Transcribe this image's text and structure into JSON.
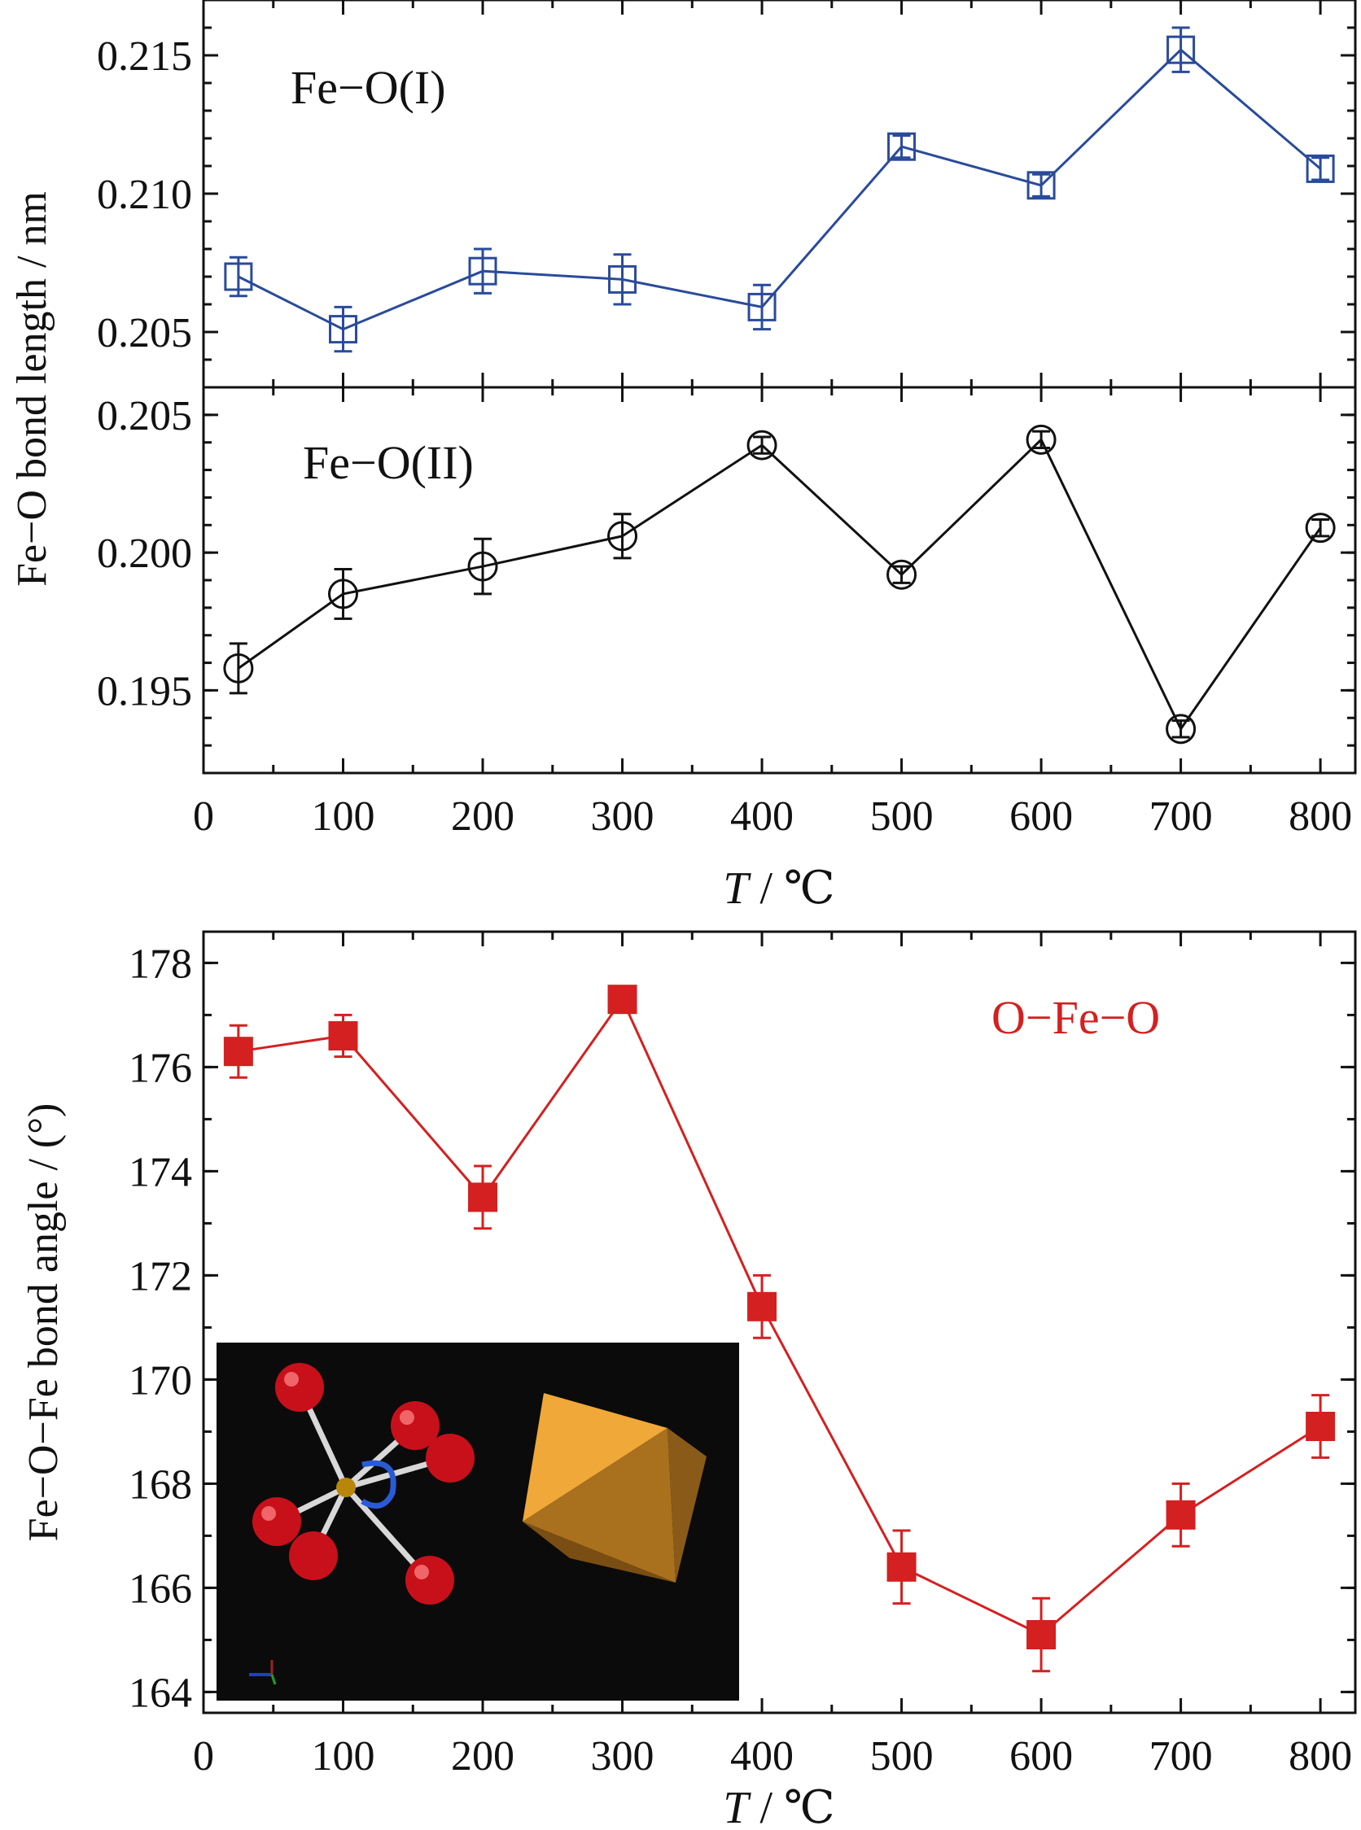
{
  "colors": {
    "series_blue": "#2a4b9b",
    "series_black": "#111111",
    "series_red": "#d42020",
    "axis": "#111111",
    "inset_bg": "#0b0b0b",
    "oxygen": "#c8101a",
    "iron": "#b8860b",
    "bond": "#d8d8d8",
    "octahedron": "#e8a13c"
  },
  "chart_data": [
    {
      "type": "line",
      "panel": "top-upper",
      "title": "",
      "annotation": "Fe−O(I)",
      "ylabel": "Fe−O bond length / nm",
      "ylim": [
        0.203,
        0.217
      ],
      "xlim": [
        0,
        825
      ],
      "x": [
        25,
        100,
        200,
        300,
        400,
        500,
        600,
        700,
        800
      ],
      "yticks": [
        0.205,
        0.21,
        0.215
      ],
      "ytick_labels": [
        "0.205",
        "0.210",
        "0.215"
      ],
      "marker": "open-square",
      "series": [
        {
          "values": [
            0.207,
            0.2051,
            0.2072,
            0.2069,
            0.2059,
            0.2117,
            0.2103,
            0.2152,
            0.2109
          ],
          "errors": [
            0.0007,
            0.0008,
            0.0008,
            0.0009,
            0.0008,
            0.0004,
            0.0004,
            0.0008,
            0.0004
          ]
        }
      ]
    },
    {
      "type": "line",
      "panel": "top-lower",
      "title": "",
      "annotation": "Fe−O(II)",
      "ylabel": "",
      "ylim": [
        0.192,
        0.206
      ],
      "xlim": [
        0,
        825
      ],
      "x": [
        25,
        100,
        200,
        300,
        400,
        500,
        600,
        700,
        800
      ],
      "xticks": [
        0,
        100,
        200,
        300,
        400,
        500,
        600,
        700,
        800
      ],
      "xtick_labels": [
        "0",
        "100",
        "200",
        "300",
        "400",
        "500",
        "600",
        "700",
        "800"
      ],
      "yticks": [
        0.195,
        0.2,
        0.205
      ],
      "ytick_labels": [
        "0.195",
        "0.200",
        "0.205"
      ],
      "xlabel_italic": "T",
      "xlabel_rest": " / ℃",
      "marker": "open-circle",
      "series": [
        {
          "values": [
            0.1958,
            0.1985,
            0.1995,
            0.2006,
            0.2039,
            0.1992,
            0.2041,
            0.1936,
            0.2009
          ],
          "errors": [
            0.0009,
            0.0009,
            0.001,
            0.0008,
            0.0003,
            0.0003,
            0.0003,
            0.0003,
            0.0003
          ]
        }
      ]
    },
    {
      "type": "line",
      "panel": "bottom",
      "title": "",
      "annotation": "O−Fe−O",
      "ylabel": "Fe−O−Fe bond angle / (°)",
      "ylim": [
        163.6,
        178.6
      ],
      "xlim": [
        0,
        825
      ],
      "x": [
        25,
        100,
        200,
        300,
        400,
        500,
        600,
        700,
        800
      ],
      "xticks": [
        0,
        100,
        200,
        300,
        400,
        500,
        600,
        700,
        800
      ],
      "xtick_labels": [
        "0",
        "100",
        "200",
        "300",
        "400",
        "500",
        "600",
        "700",
        "800"
      ],
      "yticks": [
        164,
        166,
        168,
        170,
        172,
        174,
        176,
        178
      ],
      "ytick_labels": [
        "164",
        "166",
        "168",
        "170",
        "172",
        "174",
        "176",
        "178"
      ],
      "xlabel_italic": "T",
      "xlabel_rest": " / ℃",
      "marker": "filled-square",
      "series": [
        {
          "values": [
            176.3,
            176.6,
            173.5,
            177.3,
            171.4,
            166.4,
            165.1,
            167.4,
            169.1
          ],
          "errors": [
            0.5,
            0.4,
            0.6,
            0.2,
            0.6,
            0.7,
            0.7,
            0.6,
            0.6
          ]
        }
      ]
    }
  ]
}
